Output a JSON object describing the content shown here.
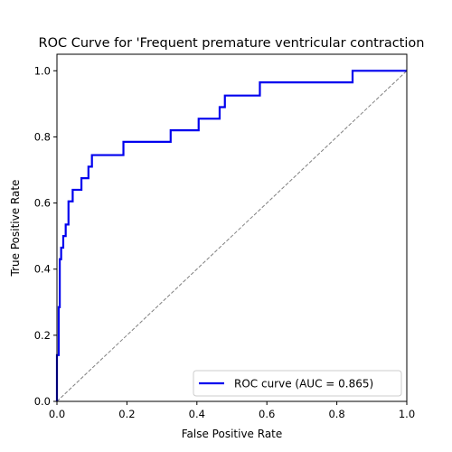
{
  "chart_data": {
    "type": "line",
    "title": "ROC Curve for 'Frequent premature ventricular contraction",
    "xlabel": "False Positive Rate",
    "ylabel": "True Positive Rate",
    "xlim": [
      0.0,
      1.0
    ],
    "ylim": [
      0.0,
      1.05
    ],
    "x_ticks": [
      "0.0",
      "0.2",
      "0.4",
      "0.6",
      "0.8",
      "1.0"
    ],
    "y_ticks": [
      "0.0",
      "0.2",
      "0.4",
      "0.6",
      "0.8",
      "1.0"
    ],
    "grid": false,
    "legend_position": "lower-right",
    "series": [
      {
        "name": "ROC curve (AUC = 0.865)",
        "color": "#0000ee",
        "style": "solid",
        "points": [
          [
            0.0,
            0.0
          ],
          [
            0.0,
            0.14
          ],
          [
            0.005,
            0.14
          ],
          [
            0.005,
            0.285
          ],
          [
            0.008,
            0.285
          ],
          [
            0.008,
            0.43
          ],
          [
            0.012,
            0.43
          ],
          [
            0.012,
            0.465
          ],
          [
            0.018,
            0.465
          ],
          [
            0.018,
            0.5
          ],
          [
            0.025,
            0.5
          ],
          [
            0.025,
            0.535
          ],
          [
            0.033,
            0.535
          ],
          [
            0.033,
            0.605
          ],
          [
            0.045,
            0.605
          ],
          [
            0.045,
            0.64
          ],
          [
            0.07,
            0.64
          ],
          [
            0.07,
            0.675
          ],
          [
            0.09,
            0.675
          ],
          [
            0.09,
            0.71
          ],
          [
            0.1,
            0.71
          ],
          [
            0.1,
            0.745
          ],
          [
            0.19,
            0.745
          ],
          [
            0.19,
            0.785
          ],
          [
            0.325,
            0.785
          ],
          [
            0.325,
            0.82
          ],
          [
            0.405,
            0.82
          ],
          [
            0.405,
            0.855
          ],
          [
            0.465,
            0.855
          ],
          [
            0.465,
            0.89
          ],
          [
            0.48,
            0.89
          ],
          [
            0.48,
            0.925
          ],
          [
            0.58,
            0.925
          ],
          [
            0.58,
            0.965
          ],
          [
            0.845,
            0.965
          ],
          [
            0.845,
            1.0
          ],
          [
            1.0,
            1.0
          ]
        ]
      },
      {
        "name": "",
        "color": "#808080",
        "style": "dashed",
        "points": [
          [
            0.0,
            0.0
          ],
          [
            1.0,
            1.0
          ]
        ]
      }
    ]
  }
}
